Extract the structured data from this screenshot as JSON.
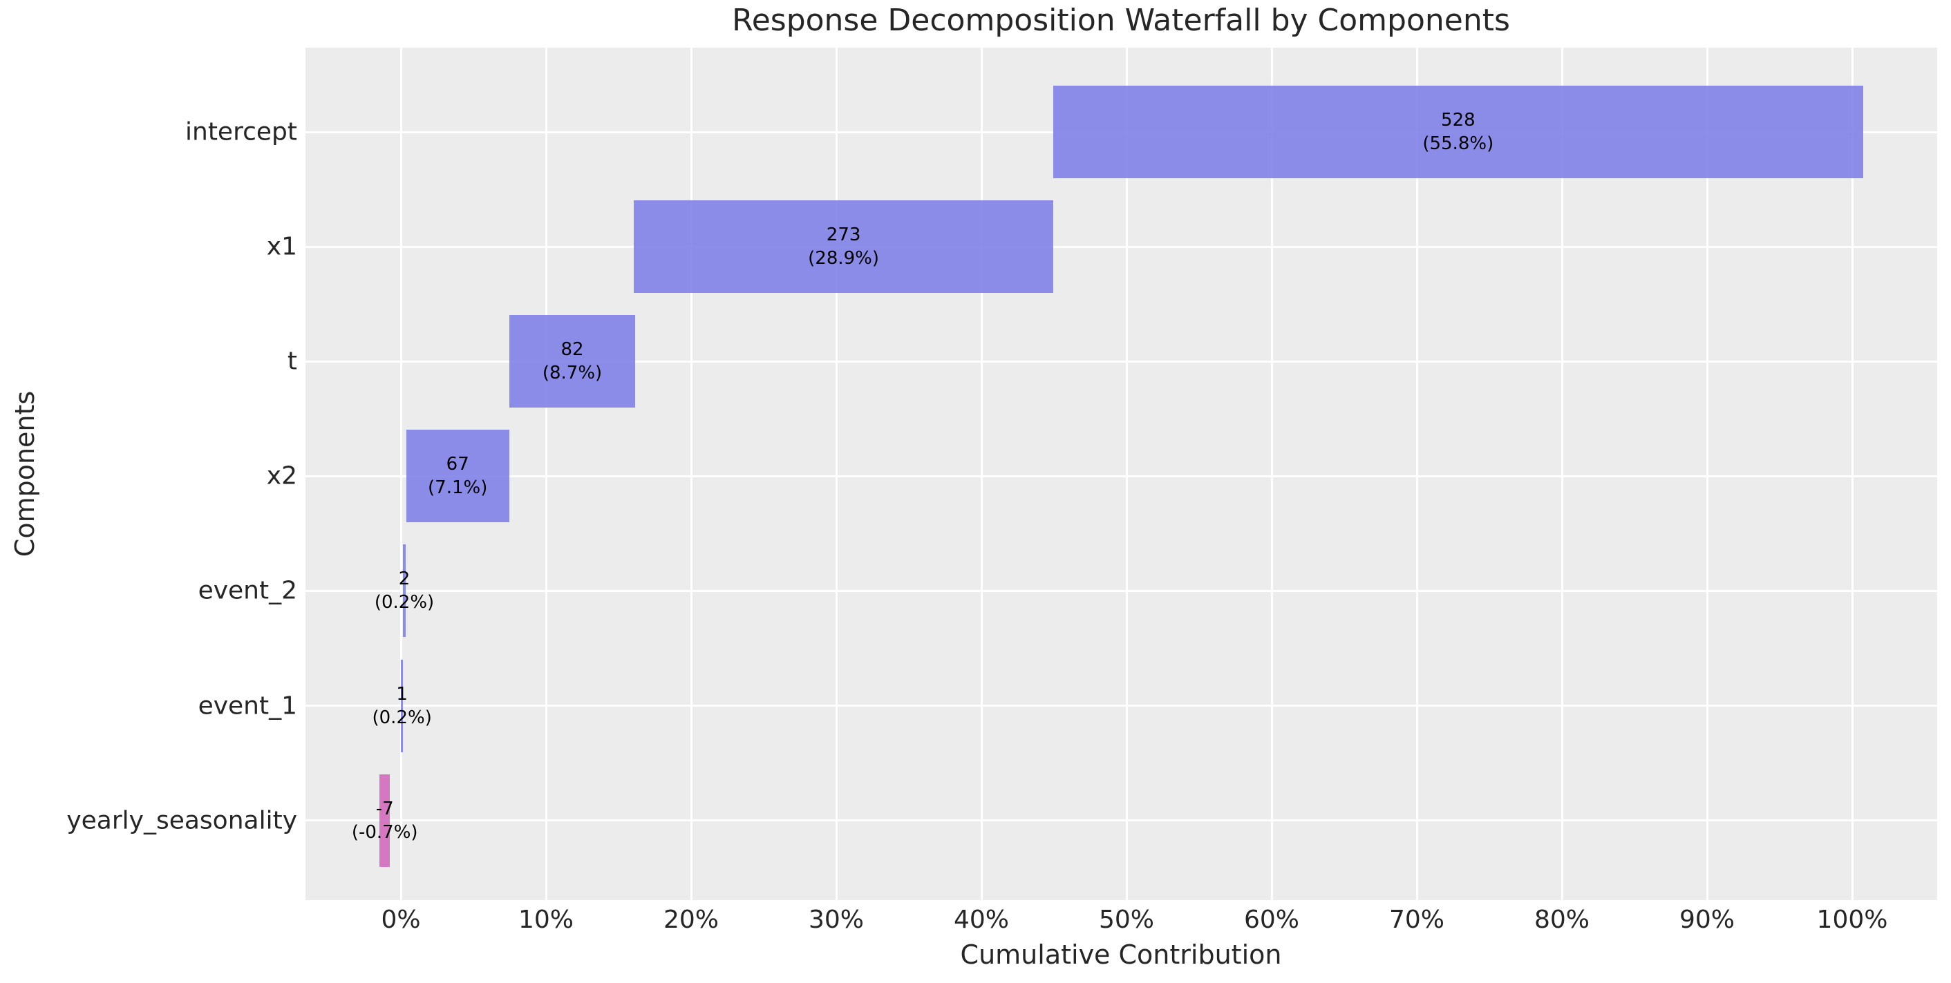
{
  "title": "Response Decomposition Waterfall by Components",
  "axes_labels": {
    "xlabel": "Cumulative Contribution",
    "ylabel": "Components"
  },
  "colors": {
    "positive_bar": "rgba(128,130,232,0.9)",
    "negative_bar": "rgba(212,107,188,0.9)",
    "plot_background": "#ececec",
    "gridline": "#ffffff",
    "text": "#262626",
    "bar_label_text": "#000000"
  },
  "x_ticks": [
    {
      "label": "0%",
      "pct": 0
    },
    {
      "label": "10%",
      "pct": 10
    },
    {
      "label": "20%",
      "pct": 20
    },
    {
      "label": "30%",
      "pct": 30
    },
    {
      "label": "40%",
      "pct": 40
    },
    {
      "label": "50%",
      "pct": 50
    },
    {
      "label": "60%",
      "pct": 60
    },
    {
      "label": "70%",
      "pct": 70
    },
    {
      "label": "80%",
      "pct": 80
    },
    {
      "label": "90%",
      "pct": 90
    },
    {
      "label": "100%",
      "pct": 100
    }
  ],
  "chart_data": {
    "type": "bar",
    "subtype": "horizontal-waterfall",
    "title": "Response Decomposition Waterfall by Components",
    "xlabel": "Cumulative Contribution",
    "ylabel": "Components",
    "legend": false,
    "grid": true,
    "xlim_pct": [
      -6.6,
      105.9
    ],
    "categories": [
      "intercept",
      "x1",
      "t",
      "x2",
      "event_2",
      "event_1",
      "yearly_seasonality"
    ],
    "values": [
      528,
      273,
      82,
      67,
      2,
      1,
      -7
    ],
    "percentages": [
      55.8,
      28.9,
      8.7,
      7.1,
      0.2,
      0.2,
      -0.7
    ],
    "bars": [
      {
        "category": "intercept",
        "value_label": "528",
        "pct_label": "(55.8%)",
        "start_pct": 44.94,
        "end_pct": 100.76,
        "negative": false
      },
      {
        "category": "x1",
        "value_label": "273",
        "pct_label": "(28.9%)",
        "start_pct": 16.07,
        "end_pct": 44.94,
        "negative": false
      },
      {
        "category": "t",
        "value_label": "82",
        "pct_label": "(8.7%)",
        "start_pct": 7.46,
        "end_pct": 16.16,
        "negative": false
      },
      {
        "category": "x2",
        "value_label": "67",
        "pct_label": "(7.1%)",
        "start_pct": 0.37,
        "end_pct": 7.46,
        "negative": false
      },
      {
        "category": "event_2",
        "value_label": "2",
        "pct_label": "(0.2%)",
        "start_pct": 0.13,
        "end_pct": 0.35,
        "negative": false
      },
      {
        "category": "event_1",
        "value_label": "1",
        "pct_label": "(0.2%)",
        "start_pct": 0.0,
        "end_pct": 0.16,
        "negative": false
      },
      {
        "category": "yearly_seasonality",
        "value_label": "-7",
        "pct_label": "(-0.7%)",
        "start_pct": -1.48,
        "end_pct": -0.74,
        "negative": true
      }
    ]
  }
}
